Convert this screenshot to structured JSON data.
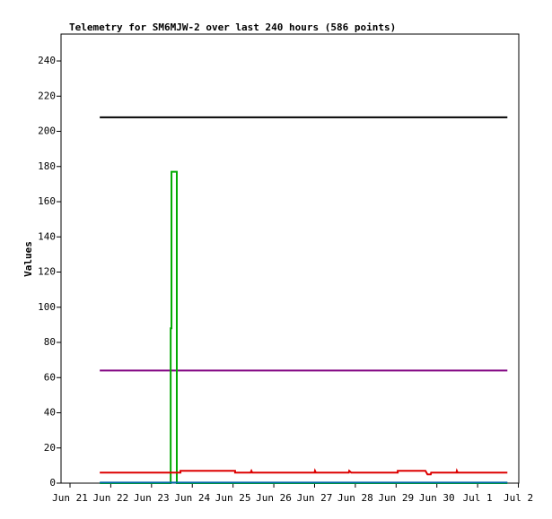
{
  "chart_data": {
    "type": "line",
    "title": "Telemetry for SM6MJW-2 over last 240 hours (586 points)",
    "y_label": "Values",
    "xlim": [
      20.78,
      32.01
    ],
    "xticks": [
      {
        "value": 21,
        "label": "Jun 21"
      },
      {
        "value": 22,
        "label": "Jun 22"
      },
      {
        "value": 23,
        "label": "Jun 23"
      },
      {
        "value": 24,
        "label": "Jun 24"
      },
      {
        "value": 25,
        "label": "Jun 25"
      },
      {
        "value": 26,
        "label": "Jun 26"
      },
      {
        "value": 27,
        "label": "Jun 27"
      },
      {
        "value": 28,
        "label": "Jun 28"
      },
      {
        "value": 29,
        "label": "Jun 29"
      },
      {
        "value": 30,
        "label": "Jun 30"
      },
      {
        "value": 31,
        "label": "Jul 1"
      },
      {
        "value": 32,
        "label": "Jul 2"
      }
    ],
    "ylim": [
      0,
      255.3
    ],
    "yticks": [
      0,
      20,
      40,
      60,
      80,
      100,
      120,
      140,
      160,
      180,
      200,
      220,
      240
    ],
    "series": [
      {
        "color": "#000000",
        "x": [
          21.73,
          31.73
        ],
        "values": [
          208,
          208
        ]
      },
      {
        "color": "#800080",
        "x": [
          21.73,
          31.73
        ],
        "values": [
          64,
          64
        ]
      },
      {
        "color": "#00aa00",
        "x": [
          21.73,
          23.47,
          23.47,
          23.49,
          23.49,
          23.53,
          23.62,
          23.62,
          31.73
        ],
        "values": [
          0,
          0,
          88,
          88,
          177,
          177,
          177,
          0,
          0
        ]
      },
      {
        "color": "#dd0000",
        "x": [
          21.73,
          23.71,
          23.71,
          25.05,
          25.05,
          25.43,
          25.45,
          25.47,
          27.0,
          27.01,
          27.03,
          27.84,
          27.85,
          27.9,
          29.04,
          29.04,
          29.72,
          29.77,
          29.85,
          29.86,
          30.48,
          30.49,
          30.51,
          31.73
        ],
        "values": [
          6,
          6,
          7,
          7,
          6,
          6,
          7,
          6,
          6,
          7,
          6,
          6,
          7,
          6,
          6,
          7,
          7,
          5,
          5,
          6,
          6,
          7,
          6,
          6
        ]
      },
      {
        "color": "#0066aa",
        "x": [
          21.73,
          31.73
        ],
        "values": [
          0.3,
          0.3
        ]
      }
    ]
  }
}
